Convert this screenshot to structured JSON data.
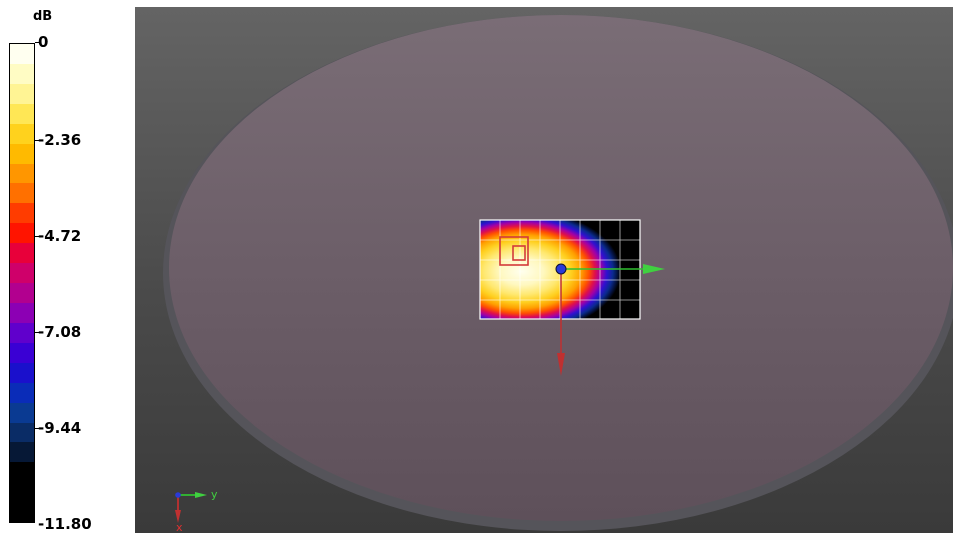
{
  "legend": {
    "unit": "dB",
    "ticks": [
      "0",
      "-2.36",
      "-4.72",
      "-7.08",
      "-9.44",
      "-11.80"
    ],
    "bands": [
      "#fffff0",
      "#fffcc4",
      "#fff494",
      "#ffe755",
      "#ffd21d",
      "#ffba00",
      "#ff9600",
      "#ff7000",
      "#ff3c00",
      "#ff1400",
      "#e8003a",
      "#cf006a",
      "#b2008f",
      "#8c00b4",
      "#6000cc",
      "#3a00d4",
      "#1a10cc",
      "#0a2cb8",
      "#0a3a92",
      "#0a2c66",
      "#061836",
      "#000000",
      "#000000",
      "#000000"
    ]
  },
  "viewport": {
    "axis_label_y": "y",
    "axis_label_x": "x",
    "colors": {
      "disk": "#6a5c66",
      "x_axis": "#d03030",
      "y_axis": "#30c030",
      "z_axis": "#2040ff"
    },
    "icons": {
      "probe_marker": "square-outline-icon",
      "origin": "origin-point-icon"
    }
  }
}
